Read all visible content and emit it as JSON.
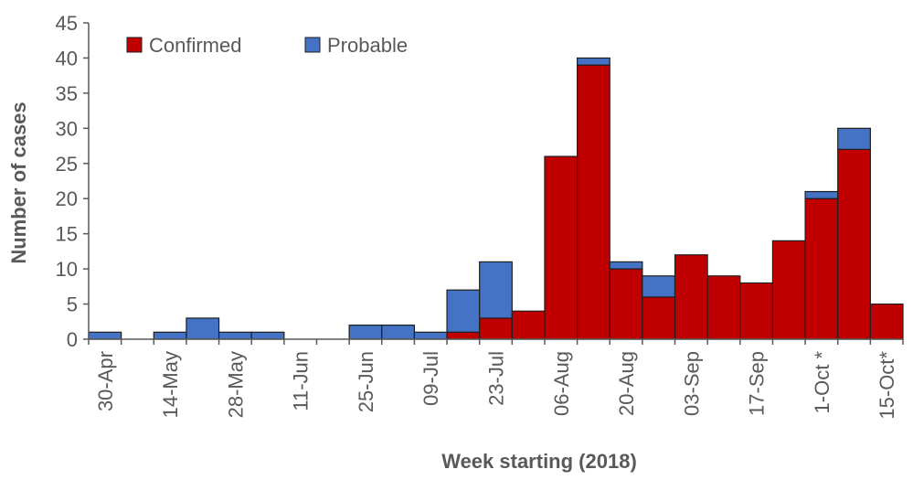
{
  "chart_data": {
    "type": "bar",
    "stacked": true,
    "xlabel": "Week starting (2018)",
    "ylabel": "Number of cases",
    "ylim": [
      0,
      45
    ],
    "y_ticks": [
      0,
      5,
      10,
      15,
      20,
      25,
      30,
      35,
      40,
      45
    ],
    "x_tick_labels": [
      "30-Apr",
      "14-May",
      "28-May",
      "11-Jun",
      "25-Jun",
      "09-Jul",
      "23-Jul",
      "06-Aug",
      "20-Aug",
      "03-Sep",
      "17-Sep",
      "1-Oct *",
      "15-Oct*"
    ],
    "legend_position": "top-left",
    "grid": false,
    "colors": {
      "Confirmed": "#c00000",
      "Probable": "#4472c4",
      "outline": "#1f1f1f",
      "axis": "#595959"
    },
    "series": [
      {
        "name": "Confirmed",
        "values": [
          0,
          0,
          0,
          0,
          0,
          0,
          0,
          0,
          0,
          0,
          0,
          1,
          3,
          4,
          26,
          39,
          10,
          6,
          12,
          9,
          8,
          14,
          20,
          27,
          5
        ]
      },
      {
        "name": "Probable",
        "values": [
          1,
          0,
          1,
          3,
          1,
          1,
          0,
          0,
          2,
          2,
          1,
          6,
          8,
          0,
          0,
          1,
          1,
          3,
          0,
          0,
          0,
          0,
          1,
          3,
          0
        ]
      }
    ]
  }
}
